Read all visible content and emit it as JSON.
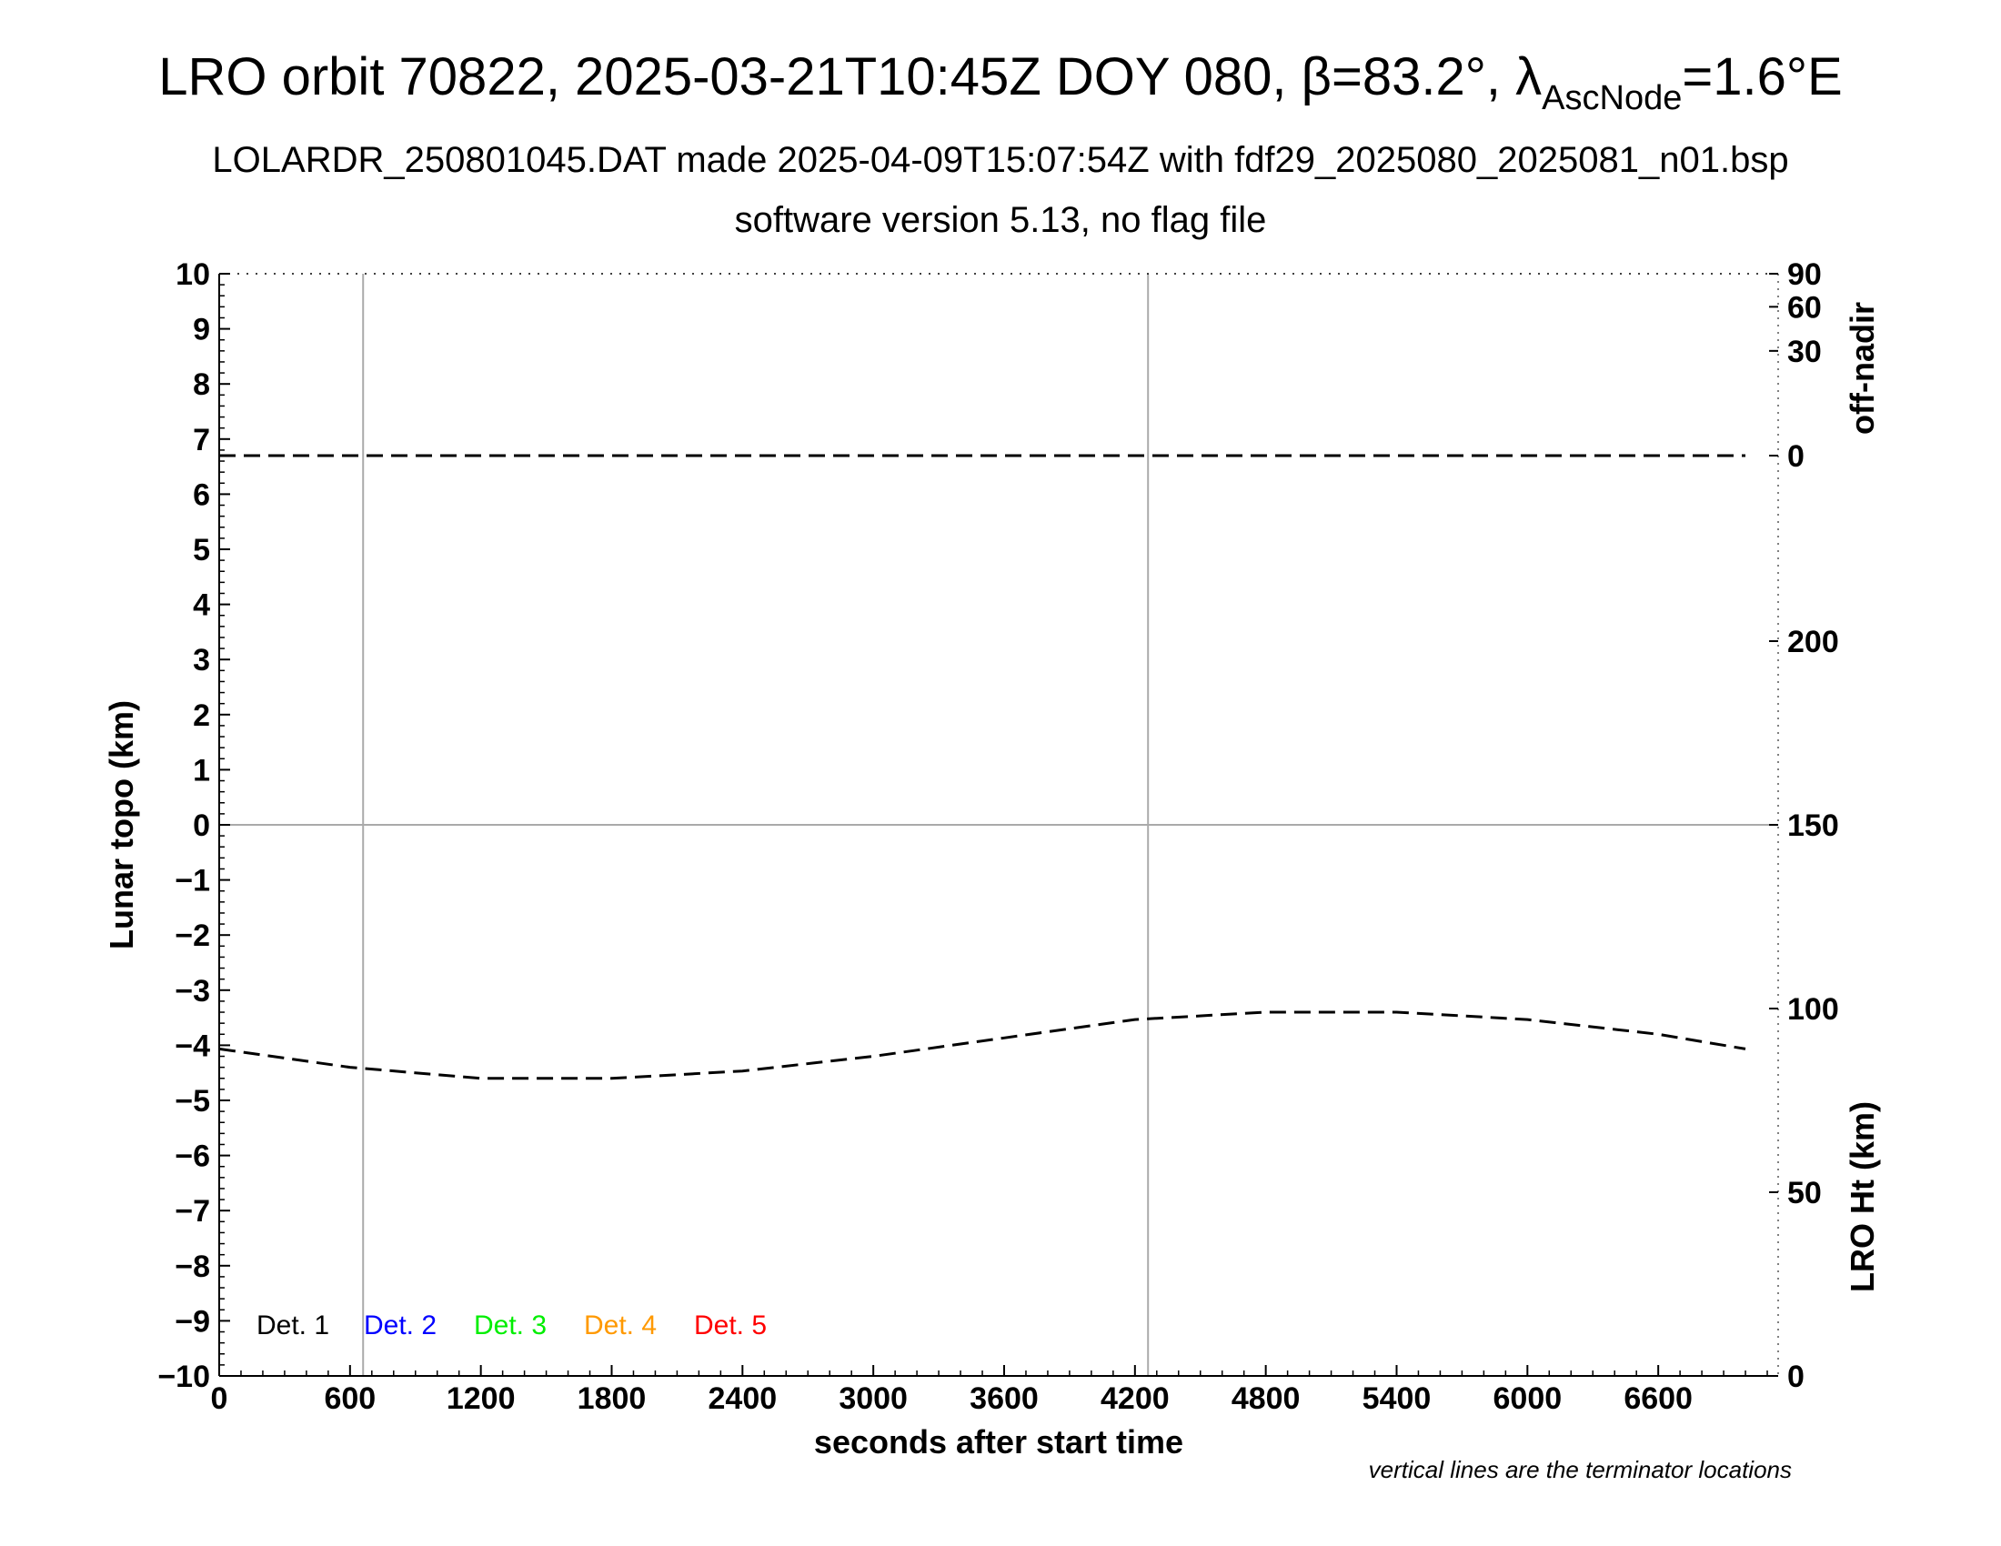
{
  "title": {
    "main": "LRO orbit 70822, 2025-03-21T10:45Z DOY 080, β=83.2°, λ",
    "sub": "AscNode",
    "tail": "=1.6°E"
  },
  "subtitle1": "LOLARDR_250801045.DAT made 2025-04-09T15:07:54Z with fdf29_2025080_2025081_n01.bsp",
  "subtitle2": "software version 5.13, no flag file",
  "footnote": "vertical lines are the terminator locations",
  "chart_data": {
    "type": "line",
    "xlabel": "seconds after start time",
    "ylabel_left": "Lunar topo (km)",
    "ylabel_right_top": "off-nadir",
    "ylabel_right_bottom": "LRO Ht (km)",
    "xlim": [
      0,
      7150
    ],
    "ylim_left": [
      -10,
      10
    ],
    "x_ticks": [
      "0",
      "600",
      "1200",
      "1800",
      "2400",
      "3000",
      "3600",
      "4200",
      "4800",
      "5400",
      "6000",
      "6600"
    ],
    "x_tick_values": [
      0,
      600,
      1200,
      1800,
      2400,
      3000,
      3600,
      4200,
      4800,
      5400,
      6000,
      6600
    ],
    "y_left_ticks": [
      "10",
      "9",
      "8",
      "7",
      "6",
      "5",
      "4",
      "3",
      "2",
      "1",
      "0",
      "−1",
      "−2",
      "−3",
      "−4",
      "−5",
      "−6",
      "−7",
      "−8",
      "−9",
      "−10"
    ],
    "y_left_tick_values": [
      10,
      9,
      8,
      7,
      6,
      5,
      4,
      3,
      2,
      1,
      0,
      -1,
      -2,
      -3,
      -4,
      -5,
      -6,
      -7,
      -8,
      -9,
      -10
    ],
    "right_top_axis": {
      "label": "off-nadir",
      "ticks": [
        "90",
        "60",
        "30",
        "0"
      ],
      "tick_values": [
        90,
        60,
        30,
        0
      ],
      "left_axis_equivalent": [
        10,
        9.4,
        8.6,
        6.7
      ]
    },
    "right_bottom_axis": {
      "label": "LRO Ht (km)",
      "ticks": [
        "200",
        "150",
        "100",
        "50",
        "0"
      ],
      "tick_values": [
        200,
        150,
        100,
        50,
        0
      ],
      "range": [
        0,
        300
      ]
    },
    "terminator_lines_x": [
      660,
      4260
    ],
    "series": [
      {
        "key": "off_nadir",
        "axis": "right-top",
        "style": "dashed",
        "color": "#000000",
        "x": [
          0,
          1000,
          2000,
          3000,
          4000,
          5000,
          6000,
          7000
        ],
        "values": [
          0,
          0,
          0,
          0,
          0,
          0,
          0,
          0
        ]
      },
      {
        "key": "lro_height",
        "axis": "right-bottom",
        "style": "dashed",
        "color": "#000000",
        "x": [
          0,
          600,
          1200,
          1800,
          2400,
          3000,
          3600,
          4200,
          4800,
          5400,
          6000,
          6600,
          7000
        ],
        "values": [
          89,
          84,
          81,
          81,
          83,
          87,
          92,
          97,
          99,
          99,
          97,
          93,
          89
        ]
      }
    ],
    "legend": [
      {
        "label": "Det. 1",
        "color": "#000000"
      },
      {
        "label": "Det. 2",
        "color": "#0000ff"
      },
      {
        "label": "Det. 3",
        "color": "#00ee00"
      },
      {
        "label": "Det. 4",
        "color": "#ff9900"
      },
      {
        "label": "Det. 5",
        "color": "#ff0000"
      }
    ],
    "grid": false
  }
}
